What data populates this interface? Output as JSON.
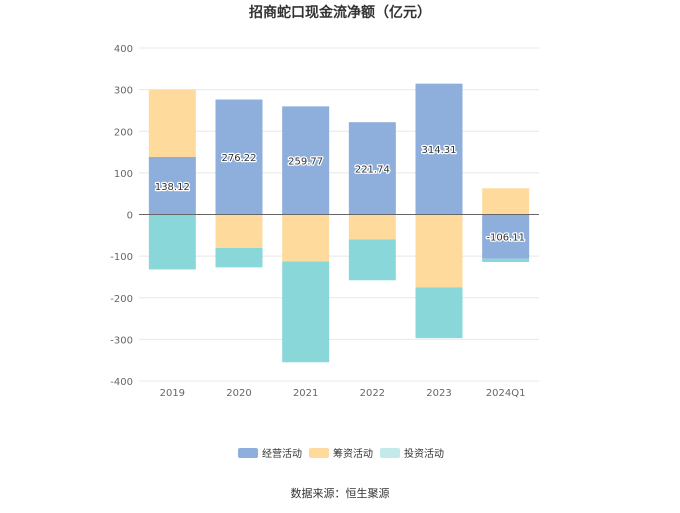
{
  "chart_data": {
    "type": "bar",
    "stacked": true,
    "title": "招商蛇口现金流净额（亿元）",
    "categories": [
      "2019",
      "2020",
      "2021",
      "2022",
      "2023",
      "2024Q1"
    ],
    "series": [
      {
        "name": "经营活动",
        "color": "#8eaedc",
        "values": [
          138.12,
          276.22,
          259.77,
          221.74,
          314.31,
          -106.11
        ]
      },
      {
        "name": "筹资活动",
        "color": "#fedb9d",
        "values": [
          162,
          -80,
          -113,
          -60,
          -175,
          63
        ]
      },
      {
        "name": "投资活动",
        "color": "#8ad7da",
        "values": [
          -132,
          -47,
          -242,
          -98,
          -122,
          -8
        ]
      }
    ],
    "data_labels": [
      "138.12",
      "276.22",
      "259.77",
      "221.74",
      "314.31",
      "-106.11"
    ],
    "yticks": [
      400,
      300,
      200,
      100,
      0,
      -100,
      -200,
      -300,
      -400
    ],
    "ylim": [
      -400,
      400
    ],
    "grid": true,
    "legend_position": "bottom-center",
    "legend_swatch_colors": [
      "#8eaedc",
      "#fedb9d",
      "#c4e9eb"
    ],
    "source": "数据来源：恒生聚源"
  }
}
